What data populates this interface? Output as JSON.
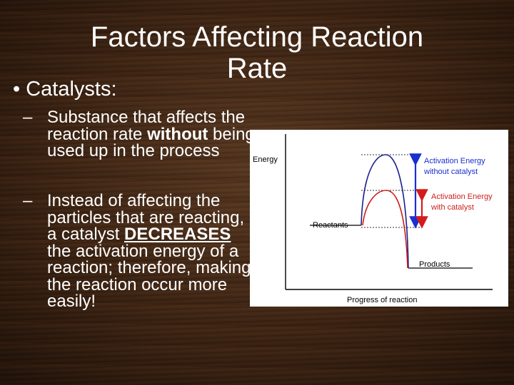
{
  "slide": {
    "title_line1": "Factors Affecting Reaction",
    "title_line2": "Rate",
    "bullet_marker": "•",
    "bullet_text": "Catalysts:",
    "sub_items": [
      {
        "marker": "–",
        "text_parts": [
          "Substance that affects the reaction rate ",
          "without",
          " being used up in the process"
        ]
      },
      {
        "marker": "–",
        "text_parts": [
          "Instead of affecting the particles that are reacting, a catalyst ",
          "DECREASES",
          " the activation energy of a reaction; therefore, making the reaction occur more easily!"
        ]
      }
    ]
  },
  "diagram": {
    "y_axis_label": "Energy",
    "x_axis_label": "Progress of reaction",
    "reactants_label": "Reactants",
    "products_label": "Products",
    "activation_no_catalyst_line1": "Activation Energy",
    "activation_no_catalyst_line2": "without catalyst",
    "activation_catalyst_line1": "Activation Energy",
    "activation_catalyst_line2": "with catalyst",
    "colors": {
      "uncatalyzed": "#1a1f8c",
      "catalyzed": "#cc1f1f",
      "arrow_blue": "#1a2fd0",
      "arrow_red": "#d41c1c",
      "axis": "#000000"
    }
  }
}
